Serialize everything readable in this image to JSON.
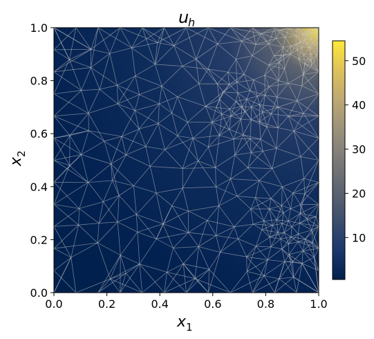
{
  "chart_data": {
    "type": "heatmap",
    "title": "u",
    "title_subscript": "h",
    "xlabel": "x",
    "xlabel_subscript": "1",
    "ylabel": "x",
    "ylabel_subscript": "2",
    "xlim": [
      0.0,
      1.0
    ],
    "ylim": [
      0.0,
      1.0
    ],
    "x_ticks": [
      "0.0",
      "0.2",
      "0.4",
      "0.6",
      "0.8",
      "1.0"
    ],
    "y_ticks": [
      "0.0",
      "0.2",
      "0.4",
      "0.6",
      "0.8",
      "1.0"
    ],
    "colorbar": {
      "colormap": "cividis",
      "vmin": 0.5,
      "vmax": 54.5,
      "ticks": [
        "10",
        "20",
        "30",
        "40",
        "50"
      ],
      "tick_values": [
        10,
        20,
        30,
        40,
        50
      ]
    },
    "field": {
      "description_peak_location": [
        1.0,
        1.0
      ],
      "peak_value": 54.5,
      "min_value": 0.5
    },
    "mesh": {
      "overlay": true,
      "line_color": "#c8c8c8",
      "refinement_centers": [
        [
          1.0,
          1.0
        ],
        [
          0.72,
          0.7
        ],
        [
          0.88,
          0.22
        ]
      ]
    }
  }
}
